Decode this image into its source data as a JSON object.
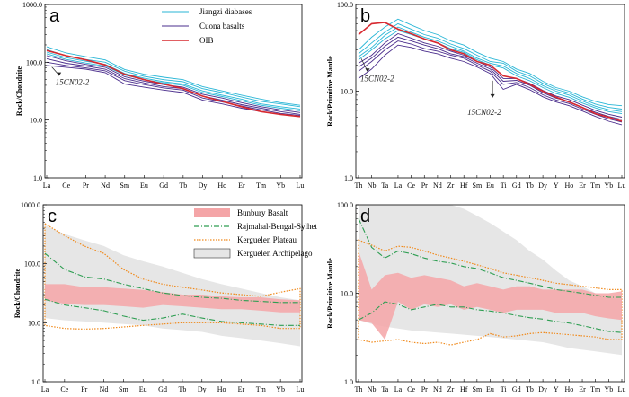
{
  "chart_data": [
    {
      "id": "a",
      "type": "line",
      "panel_label": "a",
      "ylabel": "Rock/Chondrite",
      "yscale": "log",
      "ylim": [
        1,
        1000
      ],
      "yticks": [
        "1.0",
        "10.0",
        "100.0",
        "1000.0"
      ],
      "categories": [
        "La",
        "Ce",
        "Pr",
        "Nd",
        "Sm",
        "Eu",
        "Gd",
        "Tb",
        "Dy",
        "Ho",
        "Er",
        "Tm",
        "Yb",
        "Lu"
      ],
      "legend": [
        {
          "label": "Jiangzi diabases",
          "color": "#29b6d6"
        },
        {
          "label": "Cuona basalts",
          "color": "#4a2d8c"
        },
        {
          "label": "OIB",
          "color": "#d7282f"
        }
      ],
      "annotations": [
        {
          "text": "15CN02-2",
          "category": "Ce",
          "value": 60
        }
      ],
      "series": [
        {
          "name": "Jiangzi diabases",
          "color": "#29b6d6",
          "values": [
            185,
            145,
            125,
            110,
            75,
            62,
            55,
            50,
            38,
            32,
            27,
            23,
            20,
            18
          ]
        },
        {
          "name": "Jiangzi diabases",
          "color": "#29b6d6",
          "values": [
            165,
            130,
            112,
            100,
            70,
            57,
            50,
            46,
            35,
            30,
            25,
            21,
            19,
            17
          ]
        },
        {
          "name": "Jiangzi diabases",
          "color": "#29b6d6",
          "values": [
            150,
            120,
            104,
            92,
            64,
            53,
            46,
            42,
            32,
            27,
            23,
            19,
            17,
            15.5
          ]
        },
        {
          "name": "Jiangzi diabases",
          "color": "#29b6d6",
          "values": [
            140,
            112,
            97,
            86,
            60,
            50,
            44,
            40,
            30,
            25.5,
            21.5,
            18,
            16,
            14.5
          ]
        },
        {
          "name": "Cuona basalts",
          "color": "#4a2d8c",
          "values": [
            130,
            106,
            92,
            82,
            56,
            47,
            41,
            37,
            28,
            24,
            20,
            17,
            15,
            13.5
          ]
        },
        {
          "name": "Cuona basalts",
          "color": "#4a2d8c",
          "values": [
            115,
            96,
            86,
            76,
            52,
            44,
            38,
            35,
            26,
            22,
            18.5,
            16,
            14,
            12.5
          ]
        },
        {
          "name": "Cuona basalts",
          "color": "#4a2d8c",
          "values": [
            100,
            88,
            80,
            71,
            48,
            41,
            36,
            33,
            24,
            20.5,
            17.5,
            15,
            13,
            12
          ]
        },
        {
          "name": "Cuona basalts",
          "color": "#4a2d8c",
          "values": [
            88,
            82,
            76,
            66,
            42,
            37,
            33,
            30,
            22,
            19,
            16,
            14,
            12.5,
            11.5
          ]
        },
        {
          "name": "OIB",
          "color": "#d7282f",
          "values": [
            160,
            130,
            110,
            90,
            62,
            50,
            42,
            35,
            26,
            21,
            17,
            14,
            12.5,
            11.5
          ]
        }
      ]
    },
    {
      "id": "b",
      "type": "line",
      "panel_label": "b",
      "ylabel": "Rock/Primitive Mantle",
      "yscale": "log",
      "ylim": [
        1,
        100
      ],
      "yticks": [
        "1.0",
        "10.0",
        "100.0"
      ],
      "categories": [
        "Th",
        "Nb",
        "Ta",
        "La",
        "Ce",
        "Pr",
        "Nd",
        "Zr",
        "Hf",
        "Sm",
        "Eu",
        "Ti",
        "Gd",
        "Tb",
        "Dy",
        "Y",
        "Ho",
        "Er",
        "Tm",
        "Yb",
        "Lu"
      ],
      "annotations": [
        {
          "text": "15CN02-2",
          "category": "Th",
          "value": 17
        },
        {
          "text": "15CN02-2",
          "category": "Ti",
          "value": 9
        }
      ],
      "series": [
        {
          "name": "Jiangzi diabases",
          "color": "#29b6d6",
          "values": [
            30,
            42,
            55,
            68,
            58,
            50,
            45,
            38,
            34,
            28,
            24,
            22,
            18,
            16,
            13,
            11,
            10,
            8.6,
            7.6,
            7,
            6.8
          ]
        },
        {
          "name": "Jiangzi diabases",
          "color": "#29b6d6",
          "values": [
            27,
            36,
            48,
            60,
            52,
            45,
            41,
            35,
            31,
            26,
            22,
            21,
            17,
            15,
            12.3,
            10.5,
            9.5,
            8.1,
            7.1,
            6.5,
            6.2
          ]
        },
        {
          "name": "Jiangzi diabases",
          "color": "#29b6d6",
          "values": [
            25,
            32,
            44,
            55,
            48,
            42,
            38,
            33,
            29,
            24,
            21,
            19.5,
            16,
            14,
            11.6,
            10,
            9,
            7.7,
            6.7,
            6.1,
            5.8
          ]
        },
        {
          "name": "Jiangzi diabases",
          "color": "#29b6d6",
          "values": [
            23,
            30,
            40,
            50,
            45,
            40,
            36,
            31,
            28,
            23,
            20,
            18.5,
            15,
            13.2,
            11,
            9.4,
            8.5,
            7.3,
            6.4,
            5.8,
            5.5
          ]
        },
        {
          "name": "Cuona basalts",
          "color": "#4a2d8c",
          "values": [
            21,
            26,
            36,
            46,
            41,
            36,
            33,
            29,
            26,
            22,
            19,
            14,
            14,
            12.3,
            10.2,
            8.8,
            8,
            6.9,
            6,
            5.4,
            5
          ]
        },
        {
          "name": "Cuona basalts",
          "color": "#4a2d8c",
          "values": [
            19,
            24,
            33,
            42,
            38,
            34,
            31,
            27,
            25,
            21,
            18,
            13,
            13.3,
            11.7,
            9.6,
            8.3,
            7.6,
            6.5,
            5.7,
            5.1,
            4.7
          ]
        },
        {
          "name": "Cuona basalts",
          "color": "#4a2d8c",
          "values": [
            17,
            22,
            30,
            38,
            35,
            31,
            29,
            26,
            24,
            20,
            17,
            12,
            12.6,
            11,
            9.1,
            7.9,
            7.2,
            6.2,
            5.4,
            4.8,
            4.4
          ]
        },
        {
          "name": "Cuona basalts",
          "color": "#4a2d8c",
          "values": [
            14,
            18,
            26,
            34,
            32,
            29,
            27,
            24,
            22,
            19,
            16,
            10.5,
            12,
            10.4,
            8.6,
            7.5,
            6.8,
            5.9,
            5.1,
            4.5,
            4.1
          ]
        },
        {
          "name": "OIB",
          "color": "#d7282f",
          "values": [
            45,
            60,
            62,
            52,
            46,
            40,
            36,
            30,
            27,
            22,
            20,
            15,
            14,
            12,
            10,
            8.5,
            7.5,
            6.5,
            5.5,
            5,
            4.5
          ]
        }
      ]
    },
    {
      "id": "c",
      "type": "area",
      "panel_label": "c",
      "ylabel": "Rock/Chondrite",
      "yscale": "log",
      "ylim": [
        1,
        1000
      ],
      "yticks": [
        "1.0",
        "10.0",
        "100.0",
        "1000.0"
      ],
      "categories": [
        "La",
        "Ce",
        "Pr",
        "Nd",
        "Sm",
        "Eu",
        "Gd",
        "Tb",
        "Dy",
        "Ho",
        "Er",
        "Tm",
        "Yb",
        "Lu"
      ],
      "legend": [
        {
          "label": "Bunbury Basalt",
          "color": "#f4a5a7",
          "style": "fill"
        },
        {
          "label": "Rajmahal-Bengal-Sylhet",
          "color": "#2e9e52",
          "style": "dashdot"
        },
        {
          "label": "Kerguelen Plateau",
          "color": "#f08a1c",
          "style": "dotted"
        },
        {
          "label": "Kerguelen Archipelago",
          "color": "#e6e6e6",
          "style": "fill"
        }
      ],
      "envelopes": [
        {
          "name": "Kerguelen Archipelago",
          "color": "#e6e6e6",
          "upper": [
            450,
            320,
            250,
            200,
            140,
            110,
            90,
            70,
            55,
            45,
            38,
            32,
            27,
            24
          ],
          "lower": [
            12,
            11,
            10.5,
            10,
            9.5,
            9,
            8,
            7.5,
            7,
            6,
            5.5,
            5,
            4.5,
            4
          ]
        },
        {
          "name": "Kerguelen Plateau",
          "color": "#f08a1c",
          "upper": [
            480,
            300,
            200,
            150,
            80,
            55,
            45,
            40,
            36,
            32,
            30,
            28,
            33,
            38
          ],
          "lower": [
            9,
            8,
            7.8,
            8,
            8.5,
            9,
            9.5,
            10,
            10,
            10,
            9.5,
            9,
            8,
            8
          ]
        },
        {
          "name": "Bunbury Basalt",
          "color": "#f4a5a7",
          "upper": [
            45,
            45,
            40,
            40,
            38,
            36,
            33,
            30,
            30,
            28,
            27,
            27,
            25,
            24
          ],
          "lower": [
            24,
            21,
            20,
            20,
            19,
            18,
            20,
            19,
            18,
            17,
            17,
            16,
            15,
            15
          ]
        }
      ],
      "series": [
        {
          "name": "Rajmahal-Bengal-Sylhet",
          "color": "#2e9e52",
          "values": [
            150,
            80,
            60,
            55,
            45,
            38,
            32,
            29,
            27,
            26,
            24,
            23,
            22,
            22
          ]
        },
        {
          "name": "Rajmahal-Bengal-Sylhet",
          "color": "#2e9e52",
          "values": [
            25,
            20,
            18,
            16,
            13,
            11,
            12,
            14,
            12,
            10.5,
            10,
            9.5,
            9,
            9
          ]
        }
      ]
    },
    {
      "id": "d",
      "type": "area",
      "panel_label": "d",
      "ylabel": "Rock/Primitive Mantle",
      "yscale": "log",
      "ylim": [
        1,
        100
      ],
      "yticks": [
        "1.0",
        "10.0",
        "100.0"
      ],
      "categories": [
        "Th",
        "Nb",
        "Ta",
        "La",
        "Ce",
        "Pr",
        "Nd",
        "Zr",
        "Hf",
        "Sm",
        "Eu",
        "Ti",
        "Gd",
        "Tb",
        "Dy",
        "Y",
        "Ho",
        "Er",
        "Tm",
        "Yb",
        "Lu"
      ],
      "envelopes": [
        {
          "name": "Kerguelen Archipelago",
          "color": "#e6e6e6",
          "upper": [
            100,
            100,
            100,
            100,
            100,
            100,
            100,
            100,
            90,
            75,
            62,
            50,
            40,
            30,
            24,
            18,
            14,
            12,
            10,
            9,
            8.5
          ],
          "lower": [
            5,
            4.5,
            4.2,
            4,
            3.8,
            3.7,
            3.6,
            3.5,
            3.4,
            3.3,
            3.2,
            3.1,
            3,
            2.9,
            2.8,
            2.6,
            2.4,
            2.3,
            2.2,
            2.1,
            2
          ]
        },
        {
          "name": "Kerguelen Plateau",
          "color": "#f08a1c",
          "upper": [
            40,
            35,
            30,
            34,
            33,
            30,
            27,
            25,
            23,
            21,
            19,
            17,
            16,
            15,
            14,
            13,
            12.5,
            12,
            11.5,
            11,
            11
          ],
          "lower": [
            3,
            2.8,
            2.9,
            3,
            2.8,
            2.7,
            2.8,
            2.6,
            2.8,
            3,
            3.5,
            3.2,
            3.3,
            3.5,
            3.6,
            3.5,
            3.4,
            3.3,
            3.2,
            3,
            3
          ]
        },
        {
          "name": "Bunbury Basalt",
          "color": "#f4a5a7",
          "upper": [
            30,
            11,
            16,
            17,
            15,
            16,
            15,
            14,
            12,
            13,
            12,
            11,
            12,
            12,
            11,
            11,
            11,
            11,
            10,
            10,
            10.5
          ],
          "lower": [
            5,
            4.6,
            3,
            8,
            6.5,
            7.5,
            7,
            7.5,
            6.5,
            7,
            6.5,
            6,
            6.5,
            6.5,
            6.5,
            6,
            6,
            6,
            5.5,
            5.2,
            5
          ]
        }
      ],
      "series": [
        {
          "name": "Rajmahal-Bengal-Sylhet",
          "color": "#2e9e52",
          "values": [
            70,
            33,
            25,
            30,
            28,
            25,
            23,
            22,
            20,
            19,
            17,
            15,
            14,
            13,
            12,
            11,
            10.5,
            10,
            9.5,
            9,
            9
          ]
        },
        {
          "name": "Rajmahal-Bengal-Sylhet",
          "color": "#2e9e52",
          "values": [
            5,
            6,
            8,
            7.5,
            6.5,
            7,
            7.5,
            7,
            7,
            6.5,
            6.3,
            6,
            5.6,
            5.3,
            5.1,
            4.8,
            4.6,
            4.3,
            4,
            3.7,
            3.6
          ]
        }
      ]
    }
  ]
}
